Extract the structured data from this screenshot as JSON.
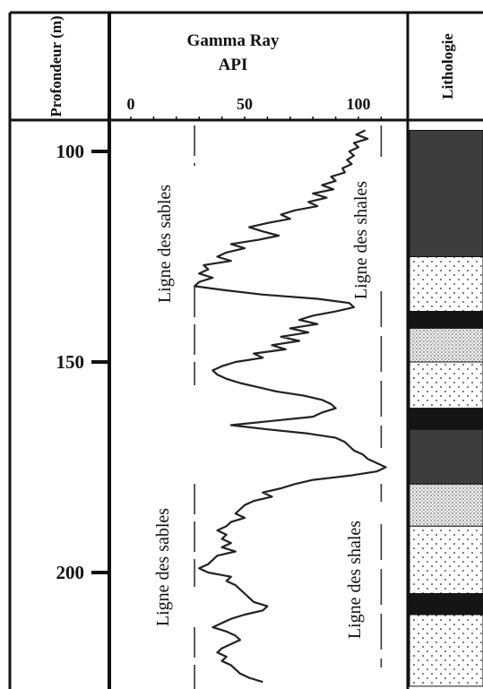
{
  "chart_data": {
    "type": "line",
    "headers": {
      "depth": "Profondeur (m)",
      "gamma_title": "Gamma Ray",
      "gamma_unit": "API",
      "lithology": "Lithologie"
    },
    "x_ticks": [
      "0",
      "50",
      "100"
    ],
    "y_ticks": [
      "100",
      "150",
      "200"
    ],
    "xlim": [
      0,
      120
    ],
    "ylim": [
      95,
      227
    ],
    "y_inverted": true,
    "annotations": {
      "sand_line_top": "Ligne des sables",
      "shale_line_top": "Ligne des shales",
      "sand_line_bottom": "Ligne des sables",
      "shale_line_bottom": "Ligne des shales"
    },
    "baselines": [
      {
        "kind": "sand",
        "x": 28
      },
      {
        "kind": "shale",
        "x": 110
      }
    ],
    "series": [
      {
        "depth": [
          95,
          96,
          97,
          98,
          99,
          100,
          101,
          102,
          103,
          104,
          105,
          106,
          107,
          108,
          109,
          110,
          111,
          112,
          113,
          114,
          115,
          116,
          117,
          118,
          119,
          120,
          121,
          122,
          123,
          124,
          125,
          126,
          127,
          128,
          129,
          130,
          131,
          132,
          133,
          134,
          135,
          136,
          137,
          138,
          139,
          140,
          141,
          142,
          143,
          144,
          145,
          146,
          147,
          148,
          149,
          150,
          151,
          152,
          153,
          154,
          155,
          156,
          157,
          158,
          159,
          160,
          161,
          162,
          163,
          164,
          165,
          166,
          167,
          168,
          169,
          170,
          171,
          172,
          173,
          174,
          175,
          176,
          177,
          178,
          179,
          180,
          181,
          182,
          183,
          184,
          185,
          186,
          187,
          188,
          189,
          190,
          191,
          192,
          193,
          194,
          195,
          196,
          197,
          198,
          199,
          200,
          201,
          202,
          203,
          204,
          205,
          206,
          207,
          208,
          209,
          210,
          211,
          212,
          213,
          214,
          215,
          216,
          217,
          218,
          219,
          220,
          221,
          222,
          223,
          224,
          225,
          226
        ],
        "gamma": [
          103,
          99,
          104,
          98,
          100,
          96,
          98,
          95,
          97,
          93,
          94,
          88,
          90,
          84,
          89,
          80,
          86,
          78,
          82,
          72,
          66,
          70,
          60,
          52,
          58,
          65,
          56,
          44,
          50,
          42,
          38,
          44,
          32,
          34,
          30,
          36,
          30,
          28,
          42,
          58,
          82,
          96,
          98,
          90,
          80,
          74,
          82,
          70,
          78,
          66,
          74,
          62,
          68,
          54,
          58,
          46,
          40,
          36,
          38,
          42,
          48,
          56,
          64,
          76,
          84,
          88,
          90,
          84,
          80,
          62,
          44,
          60,
          78,
          90,
          94,
          96,
          98,
          102,
          104,
          108,
          112,
          108,
          96,
          80,
          72,
          66,
          58,
          62,
          54,
          50,
          48,
          46,
          50,
          44,
          42,
          38,
          42,
          40,
          44,
          40,
          46,
          38,
          36,
          34,
          30,
          34,
          44,
          42,
          46,
          48,
          50,
          52,
          54,
          60,
          58,
          50,
          44,
          40,
          36,
          42,
          46,
          48,
          44,
          40,
          38,
          42,
          40,
          44,
          46,
          48,
          52,
          58
        ]
      }
    ],
    "lithology": [
      {
        "from": 95,
        "to": 125,
        "type": "shale"
      },
      {
        "from": 125,
        "to": 138,
        "type": "sand"
      },
      {
        "from": 138,
        "to": 142,
        "type": "shale"
      },
      {
        "from": 142,
        "to": 150,
        "type": "fine-sand"
      },
      {
        "from": 150,
        "to": 161,
        "type": "sand"
      },
      {
        "from": 161,
        "to": 166,
        "type": "shale"
      },
      {
        "from": 166,
        "to": 179,
        "type": "shale"
      },
      {
        "from": 179,
        "to": 189,
        "type": "fine-sand"
      },
      {
        "from": 189,
        "to": 205,
        "type": "sand"
      },
      {
        "from": 205,
        "to": 210,
        "type": "shale"
      },
      {
        "from": 210,
        "to": 227,
        "type": "sand"
      }
    ],
    "colors": {
      "axis": "#111111",
      "curve": "#222222",
      "shale": "#3d3d3d",
      "shale_dark": "#151515"
    }
  }
}
